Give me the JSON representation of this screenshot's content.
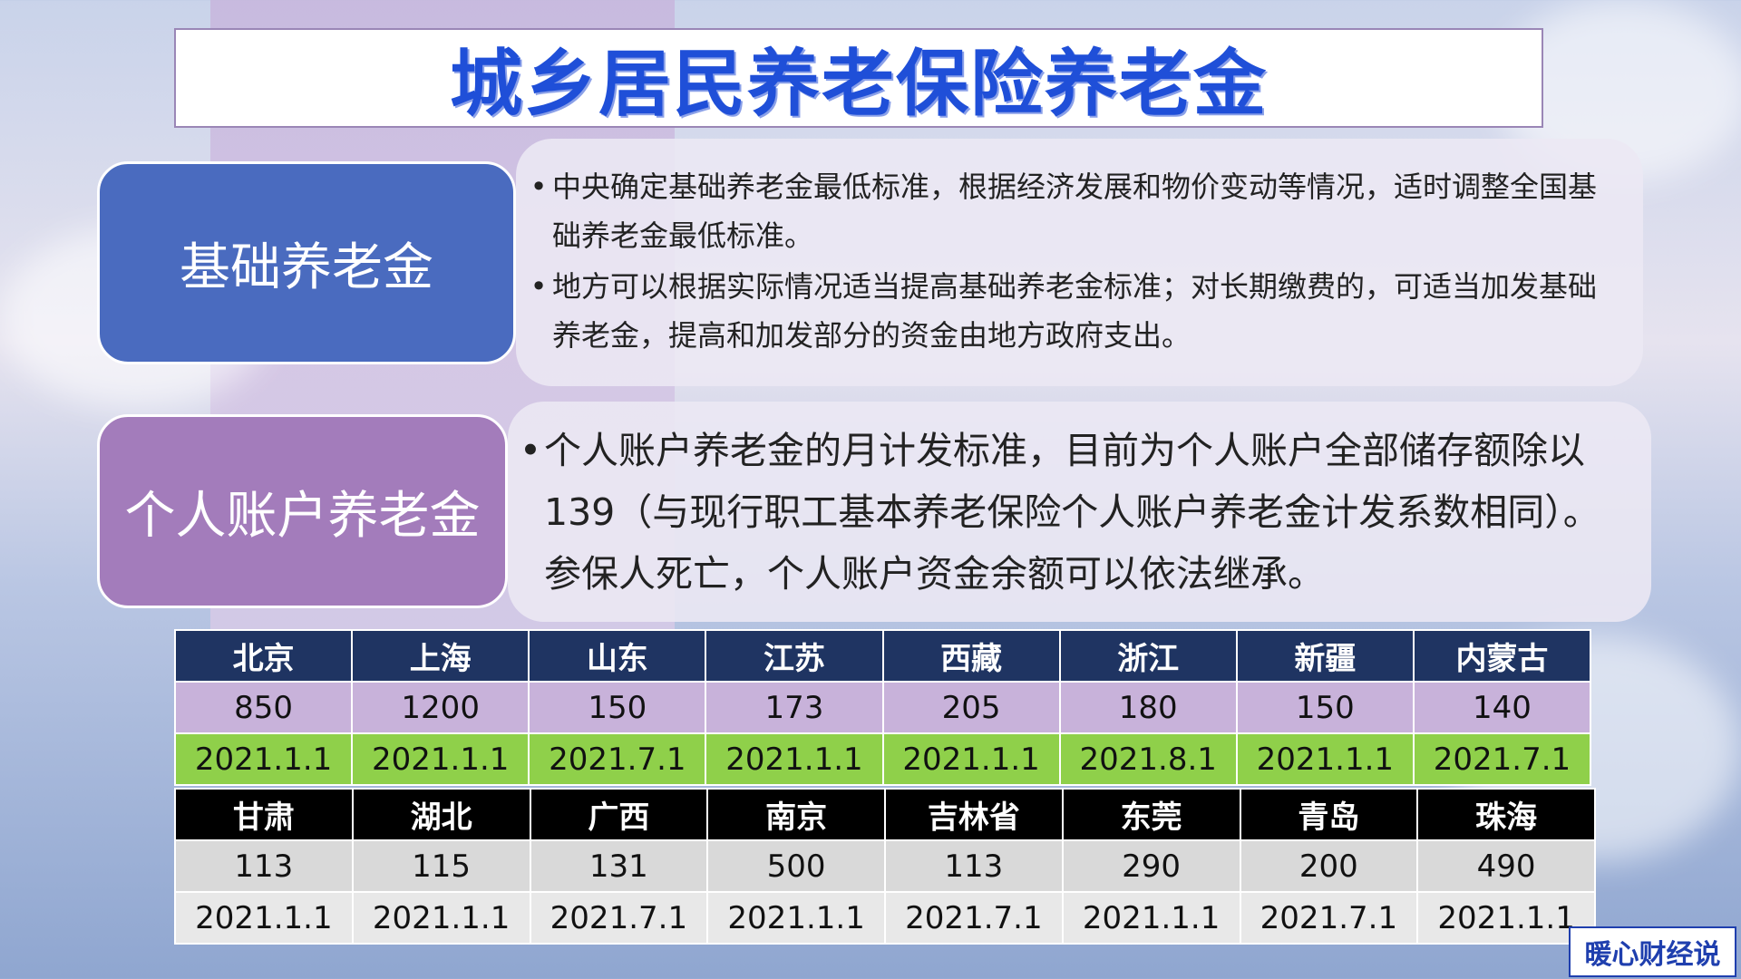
{
  "title": "城乡居民养老保险养老金",
  "sections": [
    {
      "label": "基础养老金",
      "bullets": [
        "中央确定基础养老金最低标准，根据经济发展和物价变动等情况，适时调整全国基础养老金最低标准。",
        "地方可以根据实际情况适当提高基础养老金标准；对长期缴费的，可适当加发基础养老金，提高和加发部分的资金由地方政府支出。"
      ]
    },
    {
      "label": "个人账户养老金",
      "bullets": [
        "个人账户养老金的月计发标准，目前为个人账户全部储存额除以139（与现行职工基本养老保险个人账户养老金计发系数相同）。参保人死亡，个人账户资金余额可以依法继承。"
      ]
    }
  ],
  "tables": [
    {
      "regions": [
        "北京",
        "上海",
        "山东",
        "江苏",
        "西藏",
        "浙江",
        "新疆",
        "内蒙古"
      ],
      "amounts": [
        "850",
        "1200",
        "150",
        "173",
        "205",
        "180",
        "150",
        "140"
      ],
      "dates": [
        "2021.1.1",
        "2021.1.1",
        "2021.7.1",
        "2021.1.1",
        "2021.1.1",
        "2021.8.1",
        "2021.1.1",
        "2021.7.1"
      ]
    },
    {
      "regions": [
        "甘肃",
        "湖北",
        "广西",
        "南京",
        "吉林省",
        "东莞",
        "青岛",
        "珠海"
      ],
      "amounts": [
        "113",
        "115",
        "131",
        "500",
        "113",
        "290",
        "200",
        "490"
      ],
      "dates": [
        "2021.1.1",
        "2021.1.1",
        "2021.7.1",
        "2021.1.1",
        "2021.7.1",
        "2021.1.1",
        "2021.7.1",
        "2021.1.1"
      ]
    }
  ],
  "watermark": "暖心财经说",
  "colors": {
    "title": "#1f4fd8",
    "basic_box": "#4a6bbf",
    "personal_box": "#a37cbb",
    "header1": "#1f3462",
    "amount1": "#c8b2da",
    "date1": "#8fd04a",
    "header2": "#000000"
  }
}
